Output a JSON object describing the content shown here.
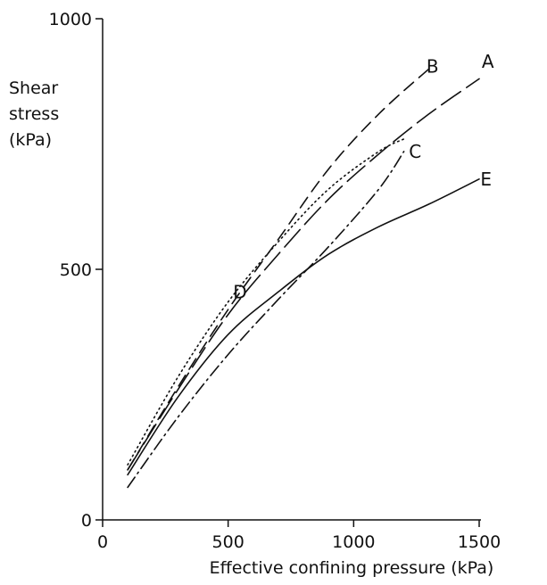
{
  "chart_data": {
    "type": "line",
    "title": "",
    "xlabel": "Effective confining pressure  (kPa)",
    "ylabel_lines": [
      "Shear",
      "stress",
      "(kPa)"
    ],
    "xlim": [
      0,
      1500
    ],
    "ylim": [
      0,
      1000
    ],
    "x_ticks": [
      {
        "value": 0,
        "label": "0"
      },
      {
        "value": 500,
        "label": "500"
      },
      {
        "value": 1000,
        "label": "1000"
      },
      {
        "value": 1500,
        "label": "1500"
      }
    ],
    "y_ticks": [
      {
        "value": 0,
        "label": "0"
      },
      {
        "value": 500,
        "label": "500"
      },
      {
        "value": 1000,
        "label": "1000"
      }
    ],
    "grid": false,
    "series": [
      {
        "name": "A",
        "style": "long-dash",
        "x": [
          100,
          300,
          500,
          700,
          900,
          1100,
          1300,
          1500
        ],
        "y": [
          100,
          260,
          410,
          530,
          640,
          730,
          810,
          880
        ]
      },
      {
        "name": "B",
        "style": "dash",
        "x": [
          100,
          300,
          500,
          700,
          900,
          1100,
          1300
        ],
        "y": [
          100,
          265,
          420,
          560,
          700,
          810,
          900
        ]
      },
      {
        "name": "C",
        "style": "dash-dot",
        "x": [
          100,
          300,
          500,
          700,
          900,
          1100,
          1200
        ],
        "y": [
          65,
          205,
          330,
          440,
          545,
          660,
          735
        ]
      },
      {
        "name": "D",
        "style": "dotted",
        "x": [
          100,
          300,
          500,
          700,
          900,
          1100,
          1200
        ],
        "y": [
          110,
          285,
          435,
          555,
          660,
          735,
          760
        ]
      },
      {
        "name": "E",
        "style": "solid",
        "x": [
          100,
          300,
          500,
          700,
          900,
          1100,
          1300,
          1500
        ],
        "y": [
          90,
          245,
          370,
          455,
          530,
          585,
          630,
          680
        ]
      }
    ],
    "curve_labels": [
      {
        "text": "A",
        "x": 1510,
        "y": 915
      },
      {
        "text": "B",
        "x": 1290,
        "y": 905
      },
      {
        "text": "C",
        "x": 1220,
        "y": 735
      },
      {
        "text": "D",
        "x": 520,
        "y": 455
      },
      {
        "text": "E",
        "x": 1505,
        "y": 680
      }
    ]
  }
}
